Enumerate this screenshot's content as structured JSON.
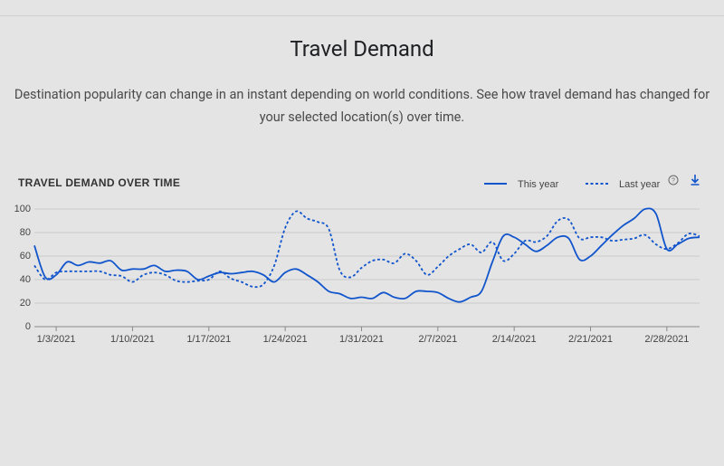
{
  "header": {
    "title": "Travel Demand",
    "description": "Destination popularity can change in an instant depending on world conditions. See how travel demand has changed for your selected location(s) over time."
  },
  "chart_data": {
    "type": "line",
    "title": "TRAVEL DEMAND OVER TIME",
    "x": [
      "1/1/2021",
      "1/2/2021",
      "1/3/2021",
      "1/4/2021",
      "1/5/2021",
      "1/6/2021",
      "1/7/2021",
      "1/8/2021",
      "1/9/2021",
      "1/10/2021",
      "1/11/2021",
      "1/12/2021",
      "1/13/2021",
      "1/14/2021",
      "1/15/2021",
      "1/16/2021",
      "1/17/2021",
      "1/18/2021",
      "1/19/2021",
      "1/20/2021",
      "1/21/2021",
      "1/22/2021",
      "1/23/2021",
      "1/24/2021",
      "1/25/2021",
      "1/26/2021",
      "1/27/2021",
      "1/28/2021",
      "1/29/2021",
      "1/30/2021",
      "1/31/2021",
      "2/1/2021",
      "2/2/2021",
      "2/3/2021",
      "2/4/2021",
      "2/5/2021",
      "2/6/2021",
      "2/7/2021",
      "2/8/2021",
      "2/9/2021",
      "2/10/2021",
      "2/11/2021",
      "2/12/2021",
      "2/13/2021",
      "2/14/2021",
      "2/15/2021",
      "2/16/2021",
      "2/17/2021",
      "2/18/2021",
      "2/19/2021",
      "2/20/2021",
      "2/21/2021",
      "2/22/2021",
      "2/23/2021",
      "2/24/2021",
      "2/25/2021",
      "2/26/2021",
      "2/27/2021",
      "2/28/2021",
      "3/1/2021",
      "3/2/2021",
      "3/3/2021"
    ],
    "xticks": [
      "1/3/2021",
      "1/10/2021",
      "1/17/2021",
      "1/24/2021",
      "1/31/2021",
      "2/7/2021",
      "2/14/2021",
      "2/21/2021",
      "2/28/2021"
    ],
    "series": [
      {
        "name": "This year",
        "color": "#1155cc",
        "dash": "solid",
        "values": [
          69,
          42,
          44,
          55,
          52,
          55,
          54,
          56,
          48,
          49,
          49,
          52,
          47,
          48,
          47,
          40,
          43,
          46,
          45,
          46,
          47,
          44,
          38,
          46,
          49,
          44,
          38,
          30,
          28,
          24,
          25,
          24,
          29,
          25,
          24,
          30,
          30,
          29,
          24,
          21,
          25,
          30,
          55,
          77,
          76,
          70,
          64,
          69,
          76,
          75,
          57,
          60,
          69,
          78,
          86,
          92,
          100,
          96,
          66,
          70,
          75,
          76
        ]
      },
      {
        "name": "Last year",
        "color": "#1155cc",
        "dash": "dotted",
        "values": [
          52,
          40,
          46,
          47,
          47,
          47,
          47,
          44,
          43,
          38,
          44,
          46,
          44,
          39,
          38,
          39,
          40,
          47,
          41,
          38,
          34,
          36,
          52,
          84,
          98,
          92,
          89,
          83,
          48,
          42,
          50,
          56,
          57,
          54,
          62,
          56,
          44,
          51,
          60,
          66,
          70,
          63,
          72,
          56,
          62,
          73,
          72,
          77,
          90,
          91,
          75,
          76,
          76,
          73,
          74,
          75,
          78,
          70,
          66,
          71,
          79,
          77
        ]
      }
    ],
    "ylim": [
      0,
      100
    ],
    "yticks": [
      0,
      20,
      40,
      60,
      80,
      100
    ],
    "grid": true,
    "legend": "top-right"
  }
}
